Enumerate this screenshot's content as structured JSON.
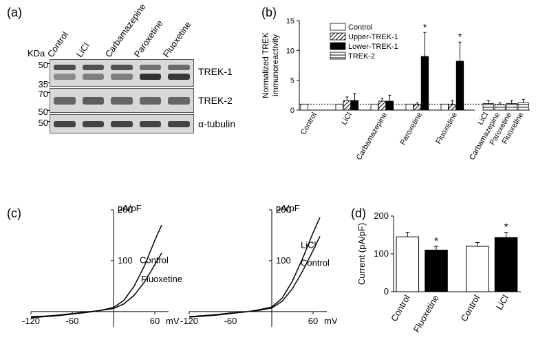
{
  "panelLabels": {
    "a": "(a)",
    "b": "(b)",
    "c": "(c)",
    "d": "(d)"
  },
  "panelA": {
    "kda": "KDa",
    "lanes": [
      "Control",
      "LiCl",
      "Carbamazepine",
      "Paroxetine",
      "Fluoxetine"
    ],
    "mw": {
      "trek1_top": "50",
      "trek1_bot": "35",
      "trek2_top": "70",
      "trek2_bot": "50",
      "tub": "50"
    },
    "rowLabels": {
      "trek1": "TREK-1",
      "trek2": "TREK-2",
      "tub": "α-tubulin"
    },
    "bandIntensity": {
      "trek1_upper": [
        0.75,
        0.7,
        0.7,
        0.45,
        0.5
      ],
      "trek1_lower": [
        0.25,
        0.35,
        0.35,
        0.95,
        0.9
      ],
      "trek2": [
        0.55,
        0.6,
        0.55,
        0.55,
        0.55
      ],
      "tub": [
        0.8,
        0.8,
        0.8,
        0.8,
        0.8
      ]
    }
  },
  "panelB": {
    "type": "bar",
    "ylabel": "Normalized TREK\nimmunoreactivity",
    "ylim": [
      0,
      15
    ],
    "ytick_step": 5,
    "mainGroups": [
      "Control",
      "LiCl",
      "Carbamazepine",
      "Paroxetine",
      "Fluoxetine"
    ],
    "mainSeries": [
      {
        "name": "Control",
        "fill": "#ffffff",
        "pattern": "none",
        "values": [
          1,
          1,
          1,
          1,
          1
        ],
        "err": [
          0,
          0,
          0,
          0,
          0
        ]
      },
      {
        "name": "Upper-TREK-1",
        "fill": "#ffffff",
        "pattern": "diag",
        "values": [
          0,
          1.6,
          1.5,
          0.9,
          0.9
        ],
        "err": [
          0,
          0.6,
          0.5,
          0.3,
          0.7
        ]
      },
      {
        "name": "Lower-TREK-1",
        "fill": "#000000",
        "pattern": "none",
        "values": [
          0,
          1.6,
          1.5,
          9.0,
          8.2
        ],
        "err": [
          0,
          1.2,
          1.0,
          4.0,
          3.2
        ]
      },
      {
        "name": "TREK-2",
        "fill": "#ffffff",
        "pattern": "horiz",
        "values": [
          0,
          0,
          0,
          0,
          0
        ],
        "err": [
          0,
          0,
          0,
          0,
          0
        ]
      }
    ],
    "rightGroups": [
      "LiCl",
      "Carbamazepine",
      "Paroxetine",
      "Fluoxetine"
    ],
    "rightSeries": {
      "fill": "#ffffff",
      "pattern": "horiz",
      "values": [
        1.1,
        0.9,
        1.1,
        1.2
      ],
      "err": [
        0.5,
        0.3,
        0.5,
        0.6
      ]
    },
    "baseline": 1.0,
    "stars": [
      {
        "group": 3,
        "series": 2
      },
      {
        "group": 4,
        "series": 2
      }
    ],
    "axis_fontsize": 12,
    "tick_fontsize": 11,
    "colors": {
      "axis": "#000000",
      "bg": "#ffffff"
    }
  },
  "panelC": {
    "type": "line",
    "ylabel": "pA/pF",
    "xlabel": "mV",
    "xlim": [
      -120,
      80
    ],
    "ylim": [
      -30,
      200
    ],
    "xticks_labeled": [
      -120,
      -60,
      60
    ],
    "yticks": [
      100,
      200
    ],
    "left": {
      "curves": [
        {
          "label": "Control",
          "labelPos": [
            38,
            95
          ],
          "points": [
            [
              -120,
              -12
            ],
            [
              -100,
              -10
            ],
            [
              -80,
              -8
            ],
            [
              -60,
              -5
            ],
            [
              -40,
              -2
            ],
            [
              -20,
              2
            ],
            [
              0,
              8
            ],
            [
              15,
              22
            ],
            [
              30,
              50
            ],
            [
              45,
              90
            ],
            [
              60,
              140
            ],
            [
              70,
              170
            ]
          ]
        },
        {
          "label": "Fluoxetine",
          "labelPos": [
            40,
            58
          ],
          "points": [
            [
              -120,
              -10
            ],
            [
              -100,
              -9
            ],
            [
              -80,
              -7
            ],
            [
              -60,
              -4
            ],
            [
              -40,
              -1
            ],
            [
              -20,
              2
            ],
            [
              0,
              6
            ],
            [
              15,
              15
            ],
            [
              30,
              32
            ],
            [
              45,
              58
            ],
            [
              60,
              92
            ],
            [
              70,
              115
            ]
          ]
        }
      ]
    },
    "right": {
      "curves": [
        {
          "label": "LiCl",
          "labelPos": [
            42,
            125
          ],
          "points": [
            [
              -120,
              -11
            ],
            [
              -100,
              -9
            ],
            [
              -80,
              -7
            ],
            [
              -60,
              -4
            ],
            [
              -40,
              -1
            ],
            [
              -20,
              3
            ],
            [
              0,
              9
            ],
            [
              15,
              26
            ],
            [
              30,
              60
            ],
            [
              45,
              105
            ],
            [
              60,
              155
            ],
            [
              70,
              185
            ]
          ]
        },
        {
          "label": "Control",
          "labelPos": [
            42,
            90
          ],
          "points": [
            [
              -120,
              -10
            ],
            [
              -100,
              -8
            ],
            [
              -80,
              -6
            ],
            [
              -60,
              -3
            ],
            [
              -40,
              -1
            ],
            [
              -20,
              2
            ],
            [
              0,
              7
            ],
            [
              15,
              20
            ],
            [
              30,
              45
            ],
            [
              45,
              80
            ],
            [
              60,
              120
            ],
            [
              70,
              148
            ]
          ]
        }
      ]
    },
    "line_color": "#000000",
    "line_width": 1.5,
    "tick_fontsize": 13
  },
  "panelD": {
    "type": "bar",
    "ylabel": "Current (pA/pF)",
    "ylim": [
      0,
      200
    ],
    "ytick_step": 100,
    "groups": [
      {
        "labels": [
          "Control",
          "Fluoxetine"
        ],
        "values": [
          145,
          110
        ],
        "err": [
          12,
          10
        ],
        "fills": [
          "#ffffff",
          "#000000"
        ],
        "star": [
          false,
          true
        ]
      },
      {
        "labels": [
          "Control",
          "LiCl"
        ],
        "values": [
          120,
          143
        ],
        "err": [
          10,
          14
        ],
        "fills": [
          "#ffffff",
          "#000000"
        ],
        "star": [
          false,
          true
        ]
      }
    ],
    "bar_width": 0.78,
    "axis_fontsize": 13,
    "tick_fontsize": 13,
    "colors": {
      "axis": "#000000"
    }
  }
}
